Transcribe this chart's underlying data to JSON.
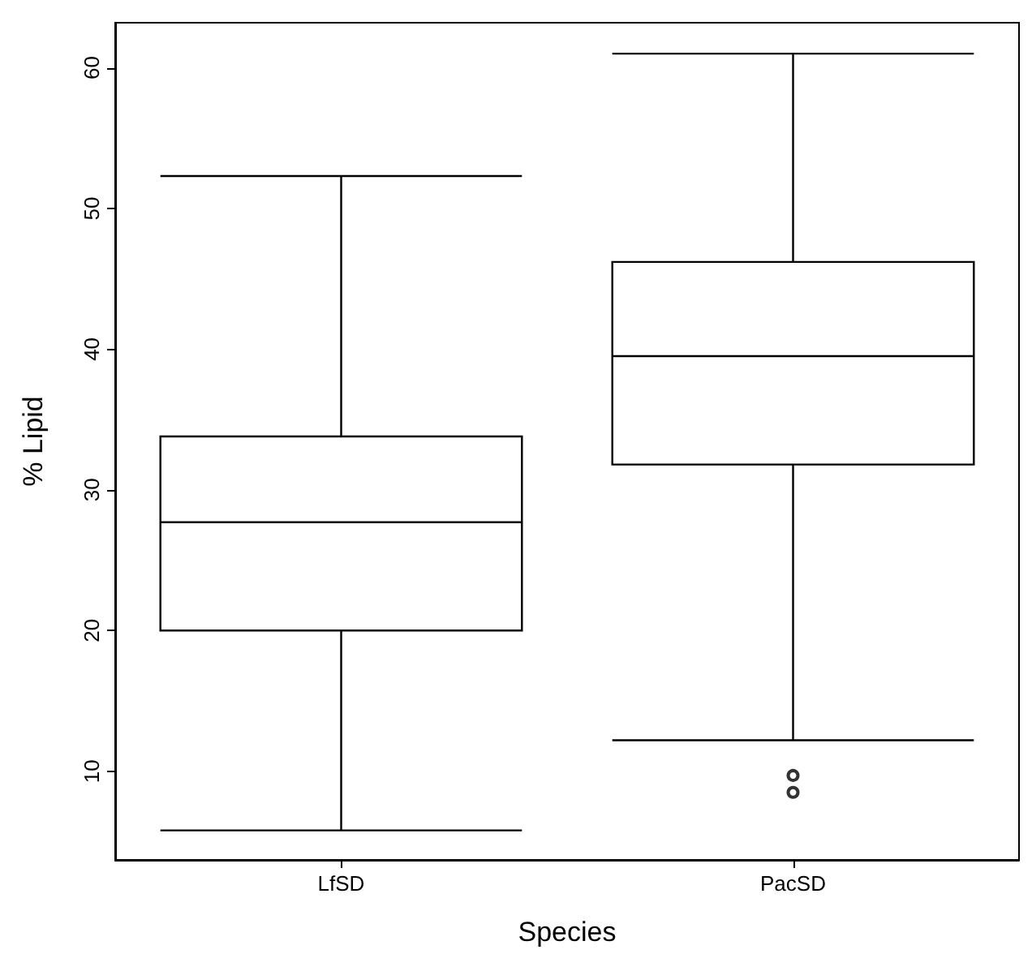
{
  "chart_data": {
    "type": "box",
    "xlabel": "Species",
    "ylabel": "% Lipid",
    "categories": [
      "LfSD",
      "PacSD"
    ],
    "boxes": [
      {
        "low": 5.8,
        "q1": 20.0,
        "median": 27.7,
        "q3": 33.8,
        "high": 52.3
      },
      {
        "low": 12.2,
        "q1": 31.8,
        "median": 39.5,
        "q3": 46.2,
        "high": 61.0,
        "outliers": [
          9.7,
          8.5
        ]
      }
    ],
    "color": "#000000",
    "ylim": [
      3.7,
      63.2
    ],
    "yticks": [
      10,
      20,
      30,
      40,
      50,
      60
    ],
    "grid": false
  }
}
